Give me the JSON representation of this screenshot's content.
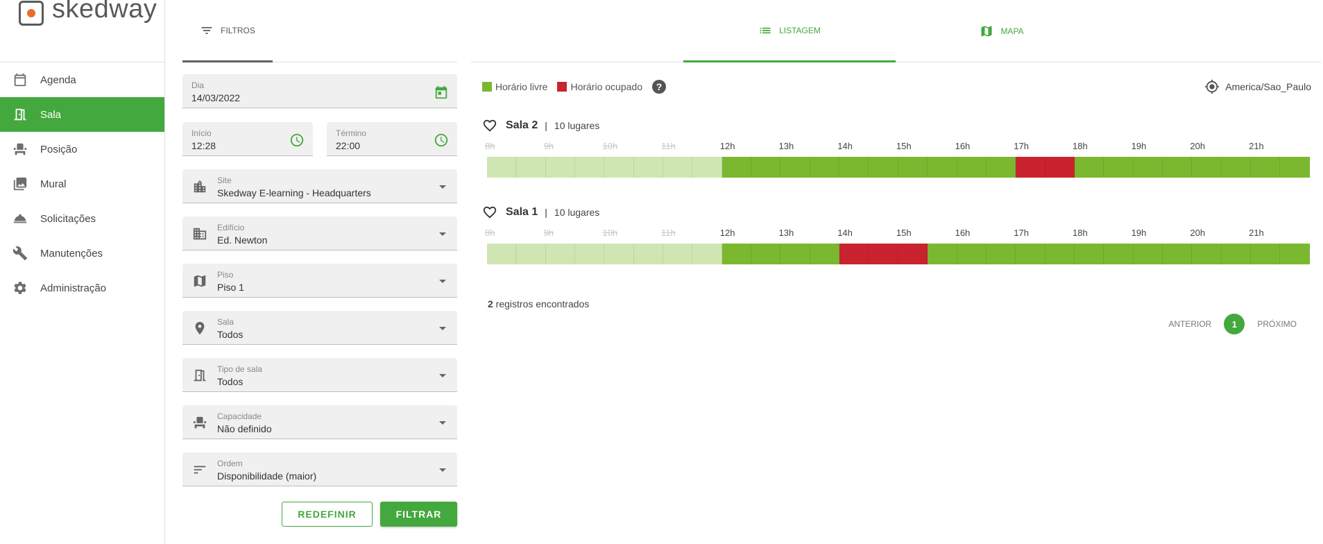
{
  "app": {
    "name": "skedway"
  },
  "sidebar": {
    "items": [
      {
        "label": "Agenda",
        "icon": "calendar-icon"
      },
      {
        "label": "Sala",
        "icon": "door-icon",
        "active": true
      },
      {
        "label": "Posição",
        "icon": "chair-icon"
      },
      {
        "label": "Mural",
        "icon": "photo-icon"
      },
      {
        "label": "Solicitações",
        "icon": "bell-icon"
      },
      {
        "label": "Manutenções",
        "icon": "wrench-icon"
      },
      {
        "label": "Administração",
        "icon": "gear-icon"
      }
    ]
  },
  "filters": {
    "tab_label": "FILTROS",
    "dia": {
      "label": "Dia",
      "value": "14/03/2022"
    },
    "inicio": {
      "label": "Início",
      "value": "12:28"
    },
    "termino": {
      "label": "Término",
      "value": "22:00"
    },
    "site": {
      "label": "Site",
      "value": "Skedway E-learning - Headquarters"
    },
    "edificio": {
      "label": "Edifício",
      "value": "Ed. Newton"
    },
    "piso": {
      "label": "Piso",
      "value": "Piso 1"
    },
    "sala": {
      "label": "Sala",
      "value": "Todos"
    },
    "tipo_sala": {
      "label": "Tipo de sala",
      "value": "Todos"
    },
    "capacidade": {
      "label": "Capacidade",
      "value": "Não definido"
    },
    "ordem": {
      "label": "Ordem",
      "value": "Disponibilidade (maior)"
    },
    "reset_label": "REDEFINIR",
    "filter_label": "FILTRAR"
  },
  "main": {
    "tabs": [
      {
        "label": "LISTAGEM",
        "active": true
      },
      {
        "label": "MAPA",
        "active": false
      }
    ],
    "legend": {
      "free_label": "Horário livre",
      "busy_label": "Horário ocupado",
      "help": "?"
    },
    "timezone": "America/Sao_Paulo",
    "hours": [
      "8h",
      "9h",
      "10h",
      "11h",
      "12h",
      "13h",
      "14h",
      "15h",
      "16h",
      "17h",
      "18h",
      "19h",
      "20h",
      "21h"
    ],
    "rooms": [
      {
        "name": "Sala 2",
        "sep": "|",
        "capacity": "10 lugares",
        "busy": [
          [
            17,
            18
          ]
        ]
      },
      {
        "name": "Sala 1",
        "sep": "|",
        "capacity": "10 lugares",
        "busy": [
          [
            14,
            15.5
          ]
        ]
      }
    ],
    "results_count": "2",
    "results_text": " registros encontrados",
    "pager": {
      "prev": "ANTERIOR",
      "page": "1",
      "next": "PRÓXIMO"
    }
  },
  "colors": {
    "accent": "#43a83e",
    "free": "#7cb82f",
    "past": "#cfe6b2",
    "busy": "#c9232f"
  }
}
